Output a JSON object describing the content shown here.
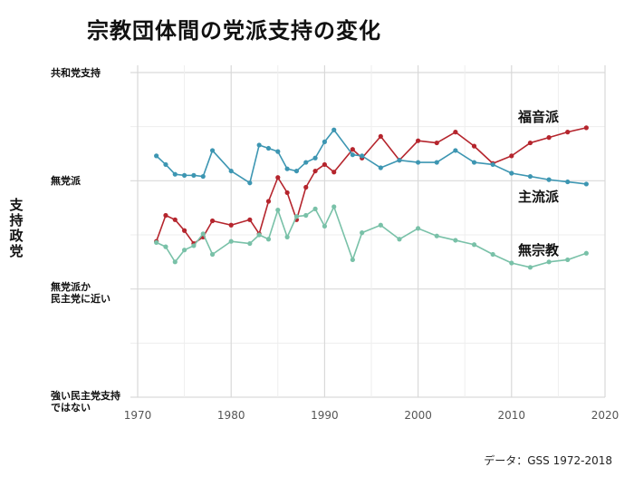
{
  "chart_data": {
    "type": "line",
    "title": "宗教団体間の党派支持の変化",
    "ylabel": "支持政党",
    "source": "データ：GSS 1972-2018",
    "xlim": [
      1970,
      2020
    ],
    "xticks": [
      1970,
      1980,
      1990,
      2000,
      2010,
      2020
    ],
    "y_categories": [
      {
        "label": "共和党支持",
        "value": 3
      },
      {
        "label": "無党派",
        "value": 2
      },
      {
        "label": "無党派か\n民主党に近い",
        "value": 1
      },
      {
        "label": "強い民主党支持\nではない",
        "value": 0
      }
    ],
    "ylim": [
      0,
      3
    ],
    "grid": true,
    "series": [
      {
        "name": "福音派",
        "color": "#b5252d",
        "x": [
          1972,
          1973,
          1974,
          1975,
          1976,
          1977,
          1978,
          1980,
          1982,
          1983,
          1984,
          1985,
          1986,
          1987,
          1988,
          1989,
          1990,
          1991,
          1993,
          1994,
          1996,
          1998,
          2000,
          2002,
          2004,
          2006,
          2008,
          2010,
          2012,
          2014,
          2016,
          2018
        ],
        "y": [
          1.44,
          1.68,
          1.64,
          1.54,
          1.42,
          1.48,
          1.63,
          1.59,
          1.64,
          1.51,
          1.81,
          2.03,
          1.89,
          1.64,
          1.94,
          2.09,
          2.15,
          2.08,
          2.29,
          2.21,
          2.41,
          2.19,
          2.37,
          2.35,
          2.45,
          2.32,
          2.16,
          2.23,
          2.35,
          2.4,
          2.45,
          2.49
        ]
      },
      {
        "name": "主流派",
        "color": "#3d96b2",
        "x": [
          1972,
          1973,
          1974,
          1975,
          1976,
          1977,
          1978,
          1980,
          1982,
          1983,
          1984,
          1985,
          1986,
          1987,
          1988,
          1989,
          1990,
          1991,
          1993,
          1994,
          1996,
          1998,
          2000,
          2002,
          2004,
          2006,
          2008,
          2010,
          2012,
          2014,
          2016,
          2018
        ],
        "y": [
          2.23,
          2.15,
          2.06,
          2.05,
          2.05,
          2.04,
          2.28,
          2.09,
          1.98,
          2.33,
          2.3,
          2.27,
          2.11,
          2.09,
          2.17,
          2.21,
          2.36,
          2.47,
          2.24,
          2.23,
          2.12,
          2.19,
          2.17,
          2.17,
          2.28,
          2.17,
          2.15,
          2.07,
          2.04,
          2.01,
          1.99,
          1.97
        ]
      },
      {
        "name": "無宗教",
        "color": "#79c1a8",
        "x": [
          1972,
          1973,
          1974,
          1975,
          1976,
          1977,
          1978,
          1980,
          1982,
          1983,
          1984,
          1985,
          1986,
          1987,
          1988,
          1989,
          1990,
          1991,
          1993,
          1994,
          1996,
          1998,
          2000,
          2002,
          2004,
          2006,
          2008,
          2010,
          2012,
          2014,
          2016,
          2018
        ],
        "y": [
          1.43,
          1.39,
          1.25,
          1.36,
          1.4,
          1.51,
          1.32,
          1.44,
          1.42,
          1.5,
          1.46,
          1.73,
          1.48,
          1.67,
          1.68,
          1.74,
          1.58,
          1.76,
          1.27,
          1.52,
          1.59,
          1.46,
          1.56,
          1.49,
          1.45,
          1.41,
          1.32,
          1.24,
          1.2,
          1.25,
          1.27,
          1.33
        ]
      }
    ]
  }
}
